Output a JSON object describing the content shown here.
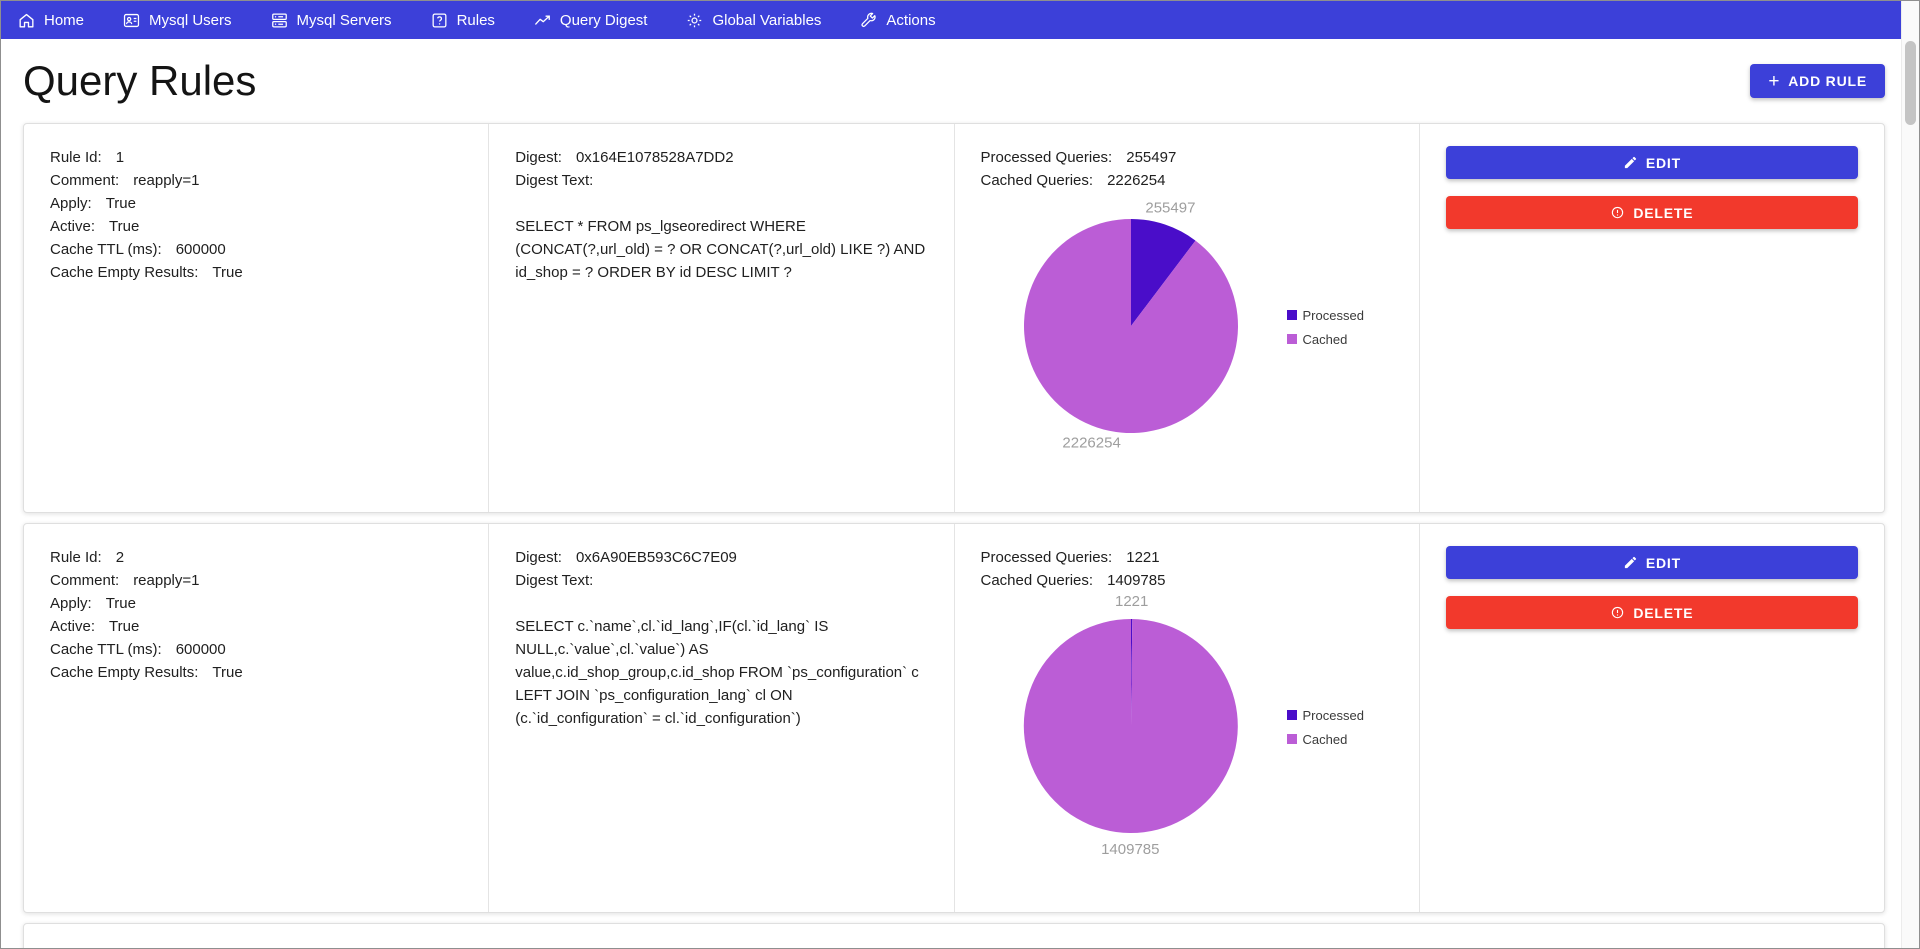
{
  "nav": {
    "items": [
      {
        "label": "Home"
      },
      {
        "label": "Mysql Users"
      },
      {
        "label": "Mysql Servers"
      },
      {
        "label": "Rules"
      },
      {
        "label": "Query Digest"
      },
      {
        "label": "Global Variables"
      },
      {
        "label": "Actions"
      }
    ]
  },
  "header": {
    "title": "Query Rules",
    "add_rule_plus": "+",
    "add_rule_label": "ADD RULE"
  },
  "chart_data": [
    {
      "type": "pie",
      "labels": [
        "Processed",
        "Cached"
      ],
      "values": [
        255497,
        2226254
      ],
      "colors": [
        "#4a0dc9",
        "#bb5dd6"
      ],
      "legend_position": "right"
    },
    {
      "type": "pie",
      "labels": [
        "Processed",
        "Cached"
      ],
      "values": [
        1221,
        1409785
      ],
      "colors": [
        "#4a0dc9",
        "#bb5dd6"
      ],
      "legend_position": "right"
    }
  ],
  "cards": [
    {
      "info": [
        {
          "label": "Rule Id:",
          "value": "1"
        },
        {
          "label": "Comment:",
          "value": "reapply=1"
        },
        {
          "label": "Apply:",
          "value": "True"
        },
        {
          "label": "Active:",
          "value": "True"
        },
        {
          "label": "Cache TTL (ms):",
          "value": "600000"
        },
        {
          "label": "Cache Empty Results:",
          "value": "True"
        }
      ],
      "digest": {
        "label": "Digest:",
        "value": "0x164E1078528A7DD2",
        "text_label": "Digest Text:",
        "text": "SELECT * FROM ps_lgseoredirect WHERE (CONCAT(?,url_old) = ? OR CONCAT(?,url_old) LIKE ?) AND id_shop = ? ORDER BY id DESC LIMIT ?"
      },
      "stats": [
        {
          "label": "Processed Queries:",
          "value": "255497"
        },
        {
          "label": "Cached Queries:",
          "value": "2226254"
        }
      ],
      "actions": {
        "edit": "EDIT",
        "delete": "DELETE"
      }
    },
    {
      "info": [
        {
          "label": "Rule Id:",
          "value": "2"
        },
        {
          "label": "Comment:",
          "value": "reapply=1"
        },
        {
          "label": "Apply:",
          "value": "True"
        },
        {
          "label": "Active:",
          "value": "True"
        },
        {
          "label": "Cache TTL (ms):",
          "value": "600000"
        },
        {
          "label": "Cache Empty Results:",
          "value": "True"
        }
      ],
      "digest": {
        "label": "Digest:",
        "value": "0x6A90EB593C6C7E09",
        "text_label": "Digest Text:",
        "text": "SELECT c.`name`,cl.`id_lang`,IF(cl.`id_lang` IS NULL,c.`value`,cl.`value`) AS value,c.id_shop_group,c.id_shop FROM `ps_configuration` c LEFT JOIN `ps_configuration_lang` cl ON (c.`id_configuration` = cl.`id_configuration`)"
      },
      "stats": [
        {
          "label": "Processed Queries:",
          "value": "1221"
        },
        {
          "label": "Cached Queries:",
          "value": "1409785"
        }
      ],
      "actions": {
        "edit": "EDIT",
        "delete": "DELETE"
      }
    }
  ],
  "colors": {
    "nav": "#3c40d9",
    "accent": "#3c40d9",
    "danger": "#f2392c",
    "processed": "#4a0dc9",
    "cached": "#bb5dd6",
    "pie_label": "#9e9e9e"
  }
}
